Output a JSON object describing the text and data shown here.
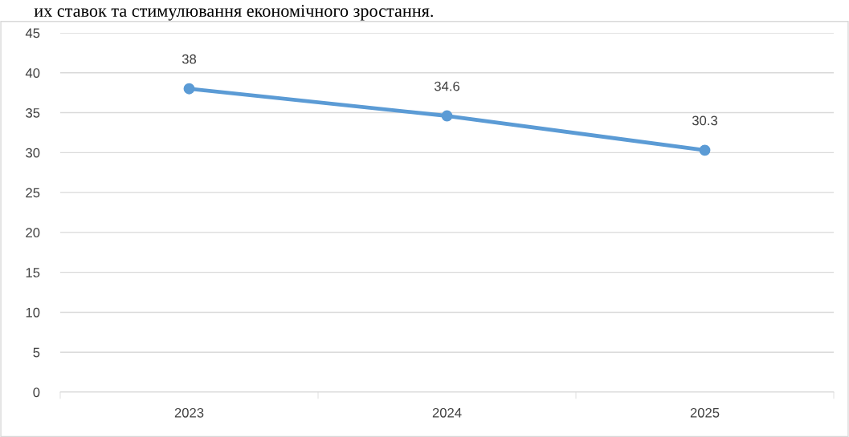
{
  "chart_data": {
    "type": "line",
    "categories": [
      "2023",
      "2024",
      "2025"
    ],
    "series": [
      {
        "color": "#5b9bd5",
        "values": [
          38,
          34.6,
          30.3
        ]
      }
    ],
    "ylim": [
      0,
      45
    ],
    "yticks": [
      0,
      5,
      10,
      15,
      20,
      25,
      30,
      35,
      40,
      45
    ],
    "grid": "y",
    "marker": "circle",
    "line_style": "solid",
    "data_labels": true,
    "annotations": [
      "их ставок та стимулювання економічного зростання."
    ]
  }
}
